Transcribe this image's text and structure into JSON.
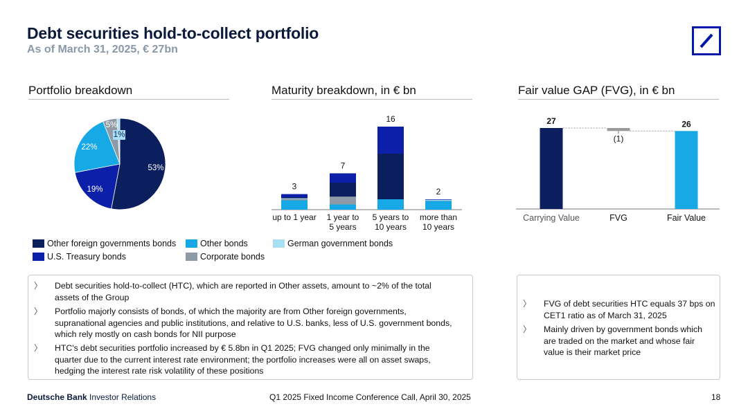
{
  "header": {
    "title": "Debt securities hold-to-collect portfolio",
    "subtitle": "As of March 31, 2025, € 27bn",
    "logo_icon": "deutsche-bank-logo-icon"
  },
  "colors": {
    "navy": "#0b1f5e",
    "dark_blue": "#0b1fa8",
    "light_blue": "#17a9e6",
    "pale_blue": "#a9dff5",
    "grey": "#8e9aa6"
  },
  "portfolio": {
    "heading": "Portfolio breakdown",
    "chart_data": {
      "type": "pie",
      "title": "Portfolio breakdown",
      "labels": [
        "Other foreign governments bonds",
        "U.S. Treasury bonds",
        "Other bonds",
        "Corporate bonds",
        "German government bonds"
      ],
      "values": [
        53,
        19,
        22,
        5,
        1
      ],
      "value_labels": [
        "53%",
        "19%",
        "22%",
        "5%",
        "1%"
      ],
      "colors": [
        "#0b1f5e",
        "#0b1fa8",
        "#17a9e6",
        "#8e9aa6",
        "#a9dff5"
      ]
    }
  },
  "legend": [
    {
      "label": "Other foreign governments bonds",
      "color": "#0b1f5e"
    },
    {
      "label": "Other bonds",
      "color": "#17a9e6"
    },
    {
      "label": "German government bonds",
      "color": "#a9dff5"
    },
    {
      "label": "U.S. Treasury bonds",
      "color": "#0b1fa8"
    },
    {
      "label": "Corporate bonds",
      "color": "#8e9aa6"
    }
  ],
  "maturity": {
    "heading": "Maturity breakdown, in € bn",
    "chart_data": {
      "type": "bar",
      "stacked": true,
      "title": "Maturity breakdown, in € bn",
      "categories": [
        "up to 1 year",
        "1 year to 5 years",
        "5 years to 10 years",
        "more than 10 years"
      ],
      "category_lines": [
        [
          "up to 1 year"
        ],
        [
          "1 year to",
          "5 years"
        ],
        [
          "5 years to",
          "10 years"
        ],
        [
          "more than",
          "10 years"
        ]
      ],
      "totals": [
        3,
        7,
        16,
        2
      ],
      "ylim": [
        0,
        16
      ],
      "series": [
        {
          "name": "Other bonds",
          "color": "#17a9e6",
          "values": [
            1.8,
            1.0,
            2.0,
            1.7
          ]
        },
        {
          "name": "Corporate bonds",
          "color": "#8e9aa6",
          "values": [
            0.3,
            1.5,
            0.0,
            0.05
          ]
        },
        {
          "name": "German government bonds",
          "color": "#a9dff5",
          "values": [
            0.1,
            0.0,
            0.0,
            0.15
          ]
        },
        {
          "name": "Other foreign governments bonds",
          "color": "#0b1f5e",
          "values": [
            0.2,
            2.7,
            8.8,
            0.0
          ]
        },
        {
          "name": "U.S. Treasury bonds",
          "color": "#0b1fa8",
          "values": [
            0.6,
            1.8,
            5.2,
            0.1
          ]
        }
      ]
    }
  },
  "fvg": {
    "heading": "Fair value GAP (FVG), in € bn",
    "chart_data": {
      "type": "bar",
      "subtype": "waterfall",
      "title": "Fair value GAP (FVG), in € bn",
      "categories": [
        "Carrying Value",
        "FVG",
        "Fair Value"
      ],
      "values": [
        27,
        -1,
        26
      ],
      "value_labels": [
        "27",
        "(1)",
        "26"
      ],
      "colors": [
        "#0b1f5e",
        "#9a9a9a",
        "#17a9e6"
      ],
      "ylim": [
        0,
        27
      ]
    }
  },
  "left_box": {
    "bullets": [
      [
        "Debt securities hold-to-collect (HTC), which are reported in Other assets, amount to ~2% of the total",
        "assets of the Group"
      ],
      [
        "Portfolio majorly consists of bonds, of which the majority are from Other foreign governments,",
        "supranational agencies and public institutions, and relative to U.S. banks, less of U.S. government bonds,",
        "which rely mostly on cash bonds for NII purpose"
      ],
      [
        "HTC's debt securities portfolio increased by € 5.8bn in Q1 2025; FVG changed only minimally in the",
        "quarter due to the current interest rate environment; the portfolio increases were all on asset swaps,",
        "hedging the interest rate risk volatility of these positions"
      ]
    ]
  },
  "right_box": {
    "bullets": [
      [
        "FVG of debt securities HTC equals 37 bps on",
        "CET1 ratio as of March 31, 2025"
      ],
      [
        "Mainly driven by government bonds which",
        "are traded on the market and whose fair",
        "value is their market price"
      ]
    ]
  },
  "footer": {
    "brand_bold": "Deutsche Bank",
    "brand_rest": "Investor Relations",
    "event": "Q1 2025 Fixed Income Conference Call, April 30, 2025",
    "page": "18"
  }
}
